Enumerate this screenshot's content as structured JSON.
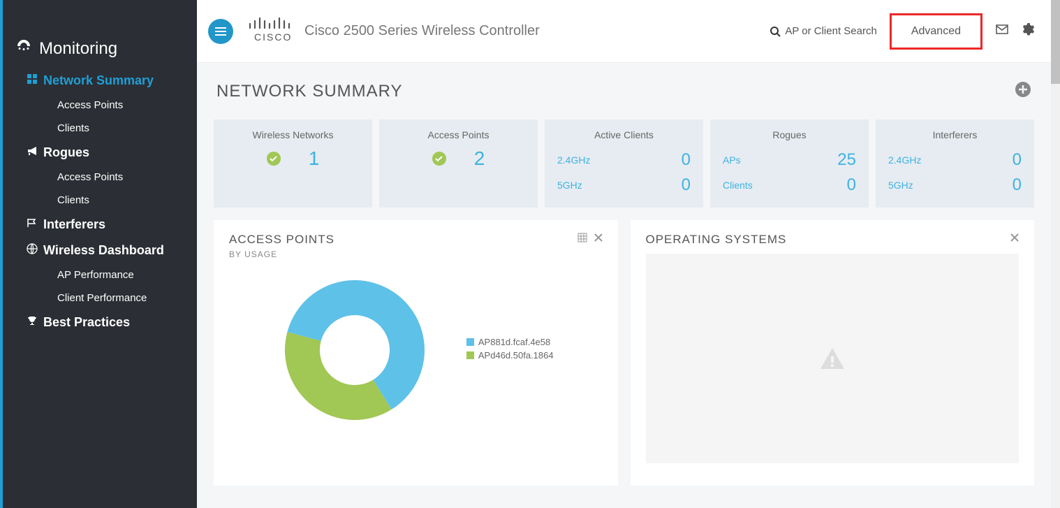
{
  "sidebar": {
    "heading": "Monitoring",
    "sections": [
      {
        "label": "Network Summary",
        "active": true,
        "items": [
          "Access Points",
          "Clients"
        ]
      },
      {
        "label": "Rogues",
        "items": [
          "Access Points",
          "Clients"
        ]
      },
      {
        "label": "Interferers",
        "items": []
      },
      {
        "label": "Wireless Dashboard",
        "items": [
          "AP Performance",
          "Client Performance"
        ]
      },
      {
        "label": "Best Practices",
        "items": []
      }
    ]
  },
  "topbar": {
    "product_title": "Cisco 2500 Series Wireless Controller",
    "search_placeholder": "AP or Client Search",
    "advanced_label": "Advanced",
    "advanced_highlight_color": "#ee2727"
  },
  "page": {
    "title": "NETWORK SUMMARY"
  },
  "stat_cards": {
    "wireless_networks": {
      "title": "Wireless Networks",
      "value": "1",
      "check": true
    },
    "access_points": {
      "title": "Access Points",
      "value": "2",
      "check": true
    },
    "active_clients": {
      "title": "Active Clients",
      "rows": [
        {
          "label": "2.4GHz",
          "value": "0"
        },
        {
          "label": "5GHz",
          "value": "0"
        }
      ]
    },
    "rogues": {
      "title": "Rogues",
      "rows": [
        {
          "label": "APs",
          "value": "25"
        },
        {
          "label": "Clients",
          "value": "0"
        }
      ]
    },
    "interferers": {
      "title": "Interferers",
      "rows": [
        {
          "label": "2.4GHz",
          "value": "0"
        },
        {
          "label": "5GHz",
          "value": "0"
        }
      ]
    }
  },
  "panels": {
    "access_points": {
      "title": "ACCESS POINTS",
      "subtitle": "BY USAGE",
      "chart": {
        "type": "donut",
        "series": [
          {
            "label": "AP881d.fcaf.4e58",
            "value": 62,
            "color": "#5ec1e8"
          },
          {
            "label": "APd46d.50fa.1864",
            "value": 38,
            "color": "#a1c754"
          }
        ],
        "inner_radius": 50,
        "outer_radius": 100,
        "background_color": "#ffffff",
        "legend_fontsize": 13
      }
    },
    "operating_systems": {
      "title": "OPERATING SYSTEMS",
      "empty": true
    }
  },
  "colors": {
    "sidebar_bg": "#2b2e34",
    "accent": "#1f9fd6",
    "stat_value": "#3fb2e3",
    "card_bg": "#e6ecf1",
    "content_bg": "#f4f6f8",
    "check_green": "#a1c754"
  }
}
